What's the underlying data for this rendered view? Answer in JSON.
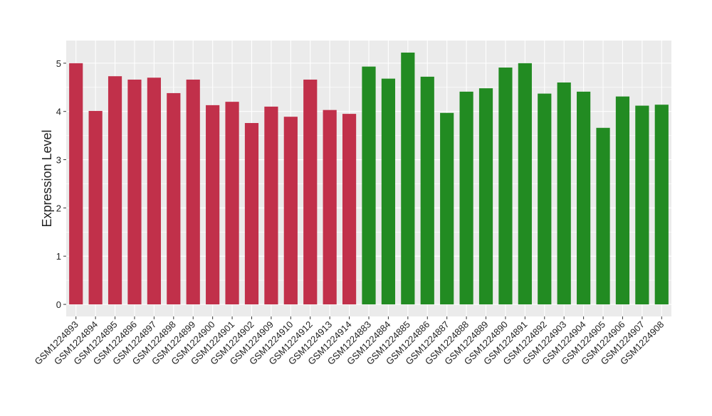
{
  "chart_data": {
    "type": "bar",
    "y_label": "Expression Level",
    "categories": [
      "GSM1224893",
      "GSM1224894",
      "GSM1224895",
      "GSM1224896",
      "GSM1224897",
      "GSM1224898",
      "GSM1224899",
      "GSM1224900",
      "GSM1224901",
      "GSM1224902",
      "GSM1224909",
      "GSM1224910",
      "GSM1224912",
      "GSM1224913",
      "GSM1224914",
      "GSM1224883",
      "GSM1224884",
      "GSM1224885",
      "GSM1224886",
      "GSM1224887",
      "GSM1224888",
      "GSM1224889",
      "GSM1224890",
      "GSM1224891",
      "GSM1224892",
      "GSM1224903",
      "GSM1224904",
      "GSM1224905",
      "GSM1224906",
      "GSM1224907",
      "GSM1224908"
    ],
    "values": [
      5.0,
      4.01,
      4.73,
      4.66,
      4.7,
      4.38,
      4.66,
      4.13,
      4.2,
      3.76,
      4.1,
      3.89,
      4.66,
      4.03,
      3.95,
      4.93,
      4.68,
      5.22,
      4.72,
      3.97,
      4.41,
      4.48,
      4.91,
      5.0,
      4.37,
      4.6,
      4.41,
      3.66,
      4.31,
      4.12,
      4.14
    ],
    "colors": [
      "#c1304a",
      "#c1304a",
      "#c1304a",
      "#c1304a",
      "#c1304a",
      "#c1304a",
      "#c1304a",
      "#c1304a",
      "#c1304a",
      "#c1304a",
      "#c1304a",
      "#c1304a",
      "#c1304a",
      "#c1304a",
      "#c1304a",
      "#228b22",
      "#228b22",
      "#228b22",
      "#228b22",
      "#228b22",
      "#228b22",
      "#228b22",
      "#228b22",
      "#228b22",
      "#228b22",
      "#228b22",
      "#228b22",
      "#228b22",
      "#228b22",
      "#228b22",
      "#228b22"
    ],
    "ylim": [
      -0.25,
      5.47
    ],
    "yticks": [
      0,
      1,
      2,
      3,
      4,
      5
    ],
    "grid": true
  }
}
